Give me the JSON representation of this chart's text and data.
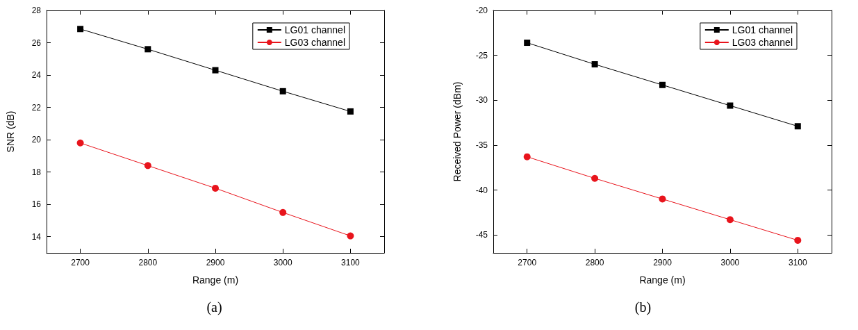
{
  "chart_data": [
    {
      "type": "line",
      "xlabel": "Range (m)",
      "ylabel": "SNR (dB)",
      "x": [
        2700,
        2800,
        2900,
        3000,
        3100
      ],
      "series": [
        {
          "name": "LG01 channel",
          "color": "#000000",
          "marker": "square",
          "values": [
            26.85,
            25.6,
            24.3,
            23.0,
            21.75
          ]
        },
        {
          "name": "LG03 channel",
          "color": "#e8141c",
          "marker": "circle",
          "values": [
            19.8,
            18.4,
            17.0,
            15.5,
            14.05
          ]
        }
      ],
      "xlim": [
        2650,
        3150
      ],
      "xticks": [
        2700,
        2800,
        2900,
        3000,
        3100
      ],
      "ylim": [
        13,
        28
      ],
      "yticks": [
        14,
        16,
        18,
        20,
        22,
        24,
        26,
        28
      ],
      "legend": "top right",
      "grid": false,
      "annotations": [
        "(a)"
      ]
    },
    {
      "type": "line",
      "xlabel": "Range (m)",
      "ylabel": "Received Power (dBm)",
      "x": [
        2700,
        2800,
        2900,
        3000,
        3100
      ],
      "series": [
        {
          "name": "LG01 channel",
          "color": "#000000",
          "marker": "square",
          "values": [
            -23.6,
            -26.0,
            -28.3,
            -30.6,
            -32.9
          ]
        },
        {
          "name": "LG03 channel",
          "color": "#e8141c",
          "marker": "circle",
          "values": [
            -36.3,
            -38.7,
            -41.0,
            -43.3,
            -45.6
          ]
        }
      ],
      "xlim": [
        2650,
        3150
      ],
      "xticks": [
        2700,
        2800,
        2900,
        3000,
        3100
      ],
      "ylim": [
        -47,
        -20
      ],
      "yticks": [
        -45,
        -40,
        -35,
        -30,
        -25,
        -20
      ],
      "legend": "top right",
      "grid": false,
      "annotations": [
        "(b)"
      ]
    }
  ]
}
